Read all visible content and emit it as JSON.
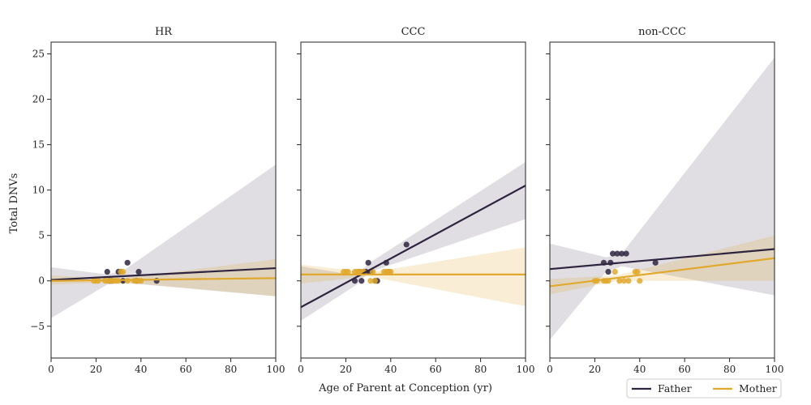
{
  "chart_data": {
    "type": "scatter",
    "xlabel": "Age of Parent at Conception (yr)",
    "ylabel": "Total DNVs",
    "xlim": [
      0,
      100
    ],
    "ylim": [
      -8.5,
      26.3
    ],
    "x_ticks": [
      0,
      20,
      40,
      60,
      80,
      100
    ],
    "y_ticks": [
      -5,
      0,
      5,
      10,
      15,
      20,
      25
    ],
    "grid": false,
    "legend_placement": "lower-right",
    "colors": {
      "Father": "#2e2440",
      "Mother": "#e0a92e"
    },
    "legend": [
      {
        "name": "Father",
        "color": "#2e2440"
      },
      {
        "name": "Mother",
        "color": "#e0a92e"
      }
    ],
    "panels": [
      {
        "title": "HR",
        "series": [
          {
            "name": "Father",
            "points": [
              [
                25,
                1
              ],
              [
                26,
                0
              ],
              [
                27,
                0
              ],
              [
                30,
                1
              ],
              [
                31,
                1
              ],
              [
                32,
                0
              ],
              [
                34,
                2
              ],
              [
                38,
                0
              ],
              [
                39,
                1
              ],
              [
                47,
                0
              ]
            ],
            "fit": {
              "x": [
                0,
                100
              ],
              "y": [
                0.1,
                1.4
              ]
            },
            "band": {
              "x": [
                0,
                25,
                32,
                100
              ],
              "lower": [
                -4.1,
                -0.4,
                -0.2,
                -1.7
              ],
              "upper": [
                1.5,
                0.7,
                1.1,
                12.8
              ]
            }
          },
          {
            "name": "Mother",
            "points": [
              [
                19,
                0
              ],
              [
                20,
                0
              ],
              [
                21,
                0
              ],
              [
                24,
                0
              ],
              [
                25,
                0
              ],
              [
                26,
                0
              ],
              [
                27,
                0
              ],
              [
                28,
                0
              ],
              [
                29,
                0
              ],
              [
                30,
                0
              ],
              [
                31,
                1
              ],
              [
                32,
                1
              ],
              [
                34,
                0
              ],
              [
                37,
                0
              ],
              [
                38,
                0
              ],
              [
                39,
                0
              ],
              [
                40,
                0
              ]
            ],
            "fit": {
              "x": [
                0,
                100
              ],
              "y": [
                0.0,
                0.3
              ]
            },
            "band": {
              "x": [
                0,
                30,
                100
              ],
              "lower": [
                -0.4,
                -0.1,
                -1.7
              ],
              "upper": [
                0.6,
                0.2,
                2.4
              ]
            }
          }
        ]
      },
      {
        "title": "CCC",
        "series": [
          {
            "name": "Father",
            "points": [
              [
                24,
                0
              ],
              [
                26,
                1
              ],
              [
                27,
                0
              ],
              [
                28,
                1
              ],
              [
                29,
                1
              ],
              [
                30,
                2
              ],
              [
                31,
                1
              ],
              [
                33,
                0
              ],
              [
                34,
                0
              ],
              [
                38,
                2
              ],
              [
                39,
                1
              ],
              [
                47,
                4
              ]
            ],
            "fit": {
              "x": [
                0,
                100
              ],
              "y": [
                -2.9,
                10.5
              ]
            },
            "band": {
              "x": [
                0,
                25,
                30,
                100
              ],
              "lower": [
                -4.4,
                -0.4,
                0.9,
                6.8
              ],
              "upper": [
                1.6,
                0.6,
                1.9,
                13.1
              ]
            }
          },
          {
            "name": "Mother",
            "points": [
              [
                19,
                1
              ],
              [
                20,
                1
              ],
              [
                21,
                1
              ],
              [
                24,
                1
              ],
              [
                25,
                1
              ],
              [
                26,
                1
              ],
              [
                27,
                1
              ],
              [
                28,
                1
              ],
              [
                31,
                0
              ],
              [
                32,
                1
              ],
              [
                33,
                0
              ],
              [
                37,
                1
              ],
              [
                38,
                1
              ],
              [
                39,
                1
              ],
              [
                40,
                1
              ]
            ],
            "fit": {
              "x": [
                0,
                100
              ],
              "y": [
                0.7,
                0.7
              ]
            },
            "band": {
              "x": [
                0,
                30,
                100
              ],
              "lower": [
                -0.3,
                0.5,
                -2.8
              ],
              "upper": [
                1.8,
                0.9,
                3.7
              ]
            }
          }
        ]
      },
      {
        "title": "non-CCC",
        "series": [
          {
            "name": "Father",
            "points": [
              [
                24,
                2
              ],
              [
                26,
                1
              ],
              [
                27,
                2
              ],
              [
                28,
                3
              ],
              [
                30,
                3
              ],
              [
                32,
                3
              ],
              [
                34,
                3
              ],
              [
                47,
                2
              ]
            ],
            "fit": {
              "x": [
                0,
                100
              ],
              "y": [
                1.3,
                3.5
              ]
            },
            "band": {
              "x": [
                0,
                25,
                32,
                100
              ],
              "lower": [
                -6.5,
                1.0,
                1.6,
                -1.6
              ],
              "upper": [
                4.1,
                2.6,
                3.0,
                24.6
              ]
            }
          },
          {
            "name": "Mother",
            "points": [
              [
                20,
                0
              ],
              [
                21,
                0
              ],
              [
                24,
                0
              ],
              [
                25,
                0
              ],
              [
                26,
                0
              ],
              [
                29,
                1
              ],
              [
                31,
                0
              ],
              [
                33,
                0
              ],
              [
                35,
                0
              ],
              [
                38,
                1
              ],
              [
                39,
                1
              ],
              [
                40,
                0
              ]
            ],
            "fit": {
              "x": [
                0,
                100
              ],
              "y": [
                -0.6,
                2.5
              ]
            },
            "band": {
              "x": [
                0,
                30,
                100
              ],
              "lower": [
                -1.5,
                0.0,
                0.0
              ],
              "upper": [
                0.2,
                0.6,
                5.0
              ]
            }
          }
        ]
      }
    ]
  }
}
